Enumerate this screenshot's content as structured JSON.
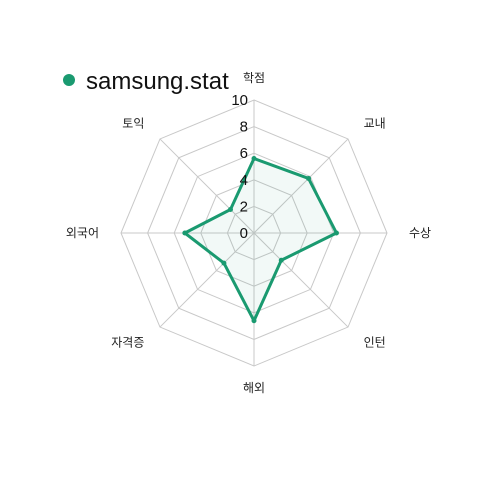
{
  "chart_data": {
    "type": "radar",
    "axes": [
      "학점",
      "교내",
      "수상",
      "인턴",
      "해외",
      "자격증",
      "외국어",
      "토익"
    ],
    "r_ticks": [
      "0",
      "2",
      "4",
      "6",
      "8",
      "10"
    ],
    "r_range": [
      0,
      10
    ],
    "series": [
      {
        "name": "samsung.stat",
        "color": "#1a9a70",
        "values": [
          5.6,
          5.8,
          6.2,
          2.9,
          6.6,
          3.2,
          5.2,
          2.5
        ]
      }
    ],
    "legend_position": "top-left",
    "grid": true
  }
}
